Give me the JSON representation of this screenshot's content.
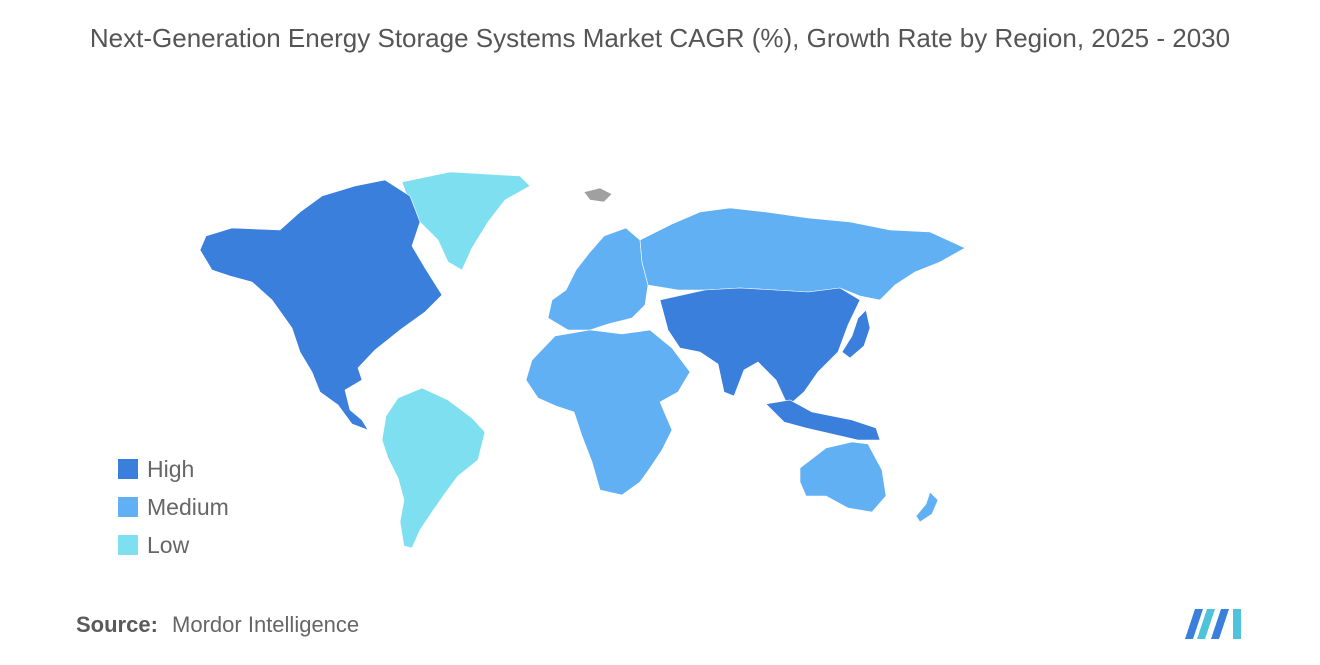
{
  "title": "Next-Generation Energy Storage Systems Market CAGR (%), Growth Rate by Region, 2025 - 2030",
  "legend": [
    {
      "label": "High",
      "color": "#3a7fdb"
    },
    {
      "label": "Medium",
      "color": "#61b0f4"
    },
    {
      "label": "Low",
      "color": "#7ddff0"
    }
  ],
  "no_data_color": "#a0a0a0",
  "regions": {
    "north_america": "High",
    "asia_pacific": "High",
    "europe": "Medium",
    "russia": "Medium",
    "middle_east_africa": "Medium",
    "australia": "Medium",
    "south_america": "Low",
    "greenland": "Low"
  },
  "source": {
    "label": "Source:",
    "value": "Mordor Intelligence"
  },
  "logo_icon": "mordor-intelligence-logo-icon"
}
